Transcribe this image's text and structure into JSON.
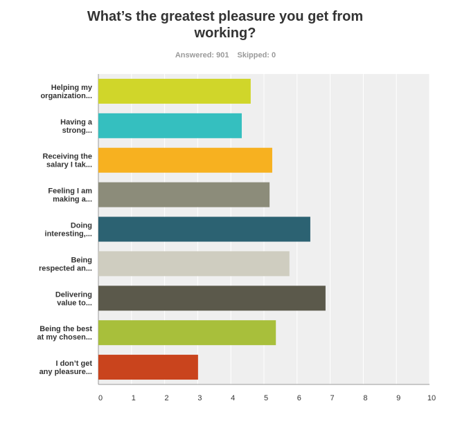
{
  "chart_data": {
    "type": "bar",
    "orientation": "horizontal",
    "title": "What’s the greatest pleasure you get from working?",
    "answered": "Answered: 901",
    "skipped": "Skipped: 0",
    "categories": [
      [
        "Helping my",
        "organization..."
      ],
      [
        "Having a",
        "strong..."
      ],
      [
        "Receiving the",
        "salary I tak..."
      ],
      [
        "Feeling I am",
        "making a..."
      ],
      [
        "Doing",
        "interesting,..."
      ],
      [
        "Being",
        "respected an..."
      ],
      [
        "Delivering",
        "value to..."
      ],
      [
        "Being the best",
        "at my chosen..."
      ],
      [
        "I don’t get",
        "any pleasure..."
      ]
    ],
    "values": [
      4.6,
      4.33,
      5.25,
      5.17,
      6.4,
      5.77,
      6.86,
      5.36,
      3.01
    ],
    "colors": [
      "#d0d62a",
      "#35bfbf",
      "#f7b120",
      "#8c8c7a",
      "#2c6272",
      "#cfcdc0",
      "#5b594b",
      "#a8bf3b",
      "#c9441d"
    ],
    "xlim": [
      0,
      10
    ],
    "xticks": [
      0,
      1,
      2,
      3,
      4,
      5,
      6,
      7,
      8,
      9,
      10
    ],
    "grid": true
  }
}
